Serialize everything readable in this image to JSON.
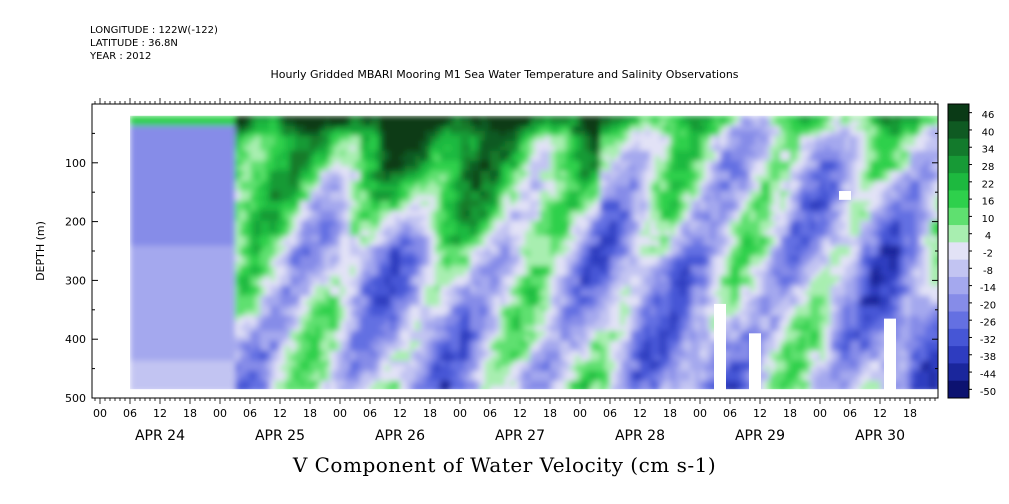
{
  "header": {
    "longitude": "LONGITUDE : 122W(-122)",
    "latitude": "LATITUDE : 36.8N",
    "year": "YEAR : 2012"
  },
  "chart_data": {
    "type": "heatmap",
    "title": "Hourly Gridded MBARI Mooring M1 Sea Water Temperature and Salinity Observations",
    "xlabel": "V Component of Water Velocity (cm s-1)",
    "ylabel": "DEPTH (m)",
    "y_ticks": [
      100,
      200,
      300,
      400,
      500
    ],
    "y_tick_labels": [
      "100",
      "200",
      "300",
      "400",
      "500"
    ],
    "ylim": [
      500,
      0
    ],
    "y_axis_inverted": true,
    "x_hour_ticks": [
      "00",
      "06",
      "12",
      "18",
      "00",
      "06",
      "12",
      "18",
      "00",
      "06",
      "12",
      "18",
      "00",
      "06",
      "12",
      "18",
      "00",
      "06",
      "12",
      "18",
      "00",
      "06",
      "12",
      "18",
      "00",
      "06",
      "12",
      "18"
    ],
    "x_day_labels": [
      "APR 24",
      "APR 25",
      "APR 26",
      "APR 27",
      "APR 28",
      "APR 29",
      "APR 30"
    ],
    "colorbar": {
      "labels": [
        "46",
        "40",
        "34",
        "28",
        "22",
        "16",
        "10",
        "4",
        "-2",
        "-8",
        "-14",
        "-20",
        "-26",
        "-32",
        "-38",
        "-44",
        "-50"
      ],
      "colors": [
        "#0a3a16",
        "#0f5a22",
        "#137a2c",
        "#179a36",
        "#1db93f",
        "#2ed04c",
        "#5fe070",
        "#a8eeb0",
        "#e2e2f6",
        "#c2c4f2",
        "#a4a8ee",
        "#868ce8",
        "#6470e2",
        "#4656d6",
        "#2e3cc0",
        "#1a269c",
        "#0c1270"
      ]
    },
    "white_gaps": [
      {
        "x_hour": 124,
        "depth_top": 340,
        "depth_bottom": 500
      },
      {
        "x_hour": 131,
        "depth_top": 390,
        "depth_bottom": 500
      },
      {
        "x_hour": 149,
        "depth_top": 148,
        "depth_bottom": 163
      },
      {
        "x_hour": 158,
        "depth_top": 365,
        "depth_bottom": 500
      }
    ],
    "data_extent": {
      "x_start_hour": 6,
      "x_end_hour": 189,
      "depth_top": 20,
      "depth_bottom": 485
    }
  }
}
